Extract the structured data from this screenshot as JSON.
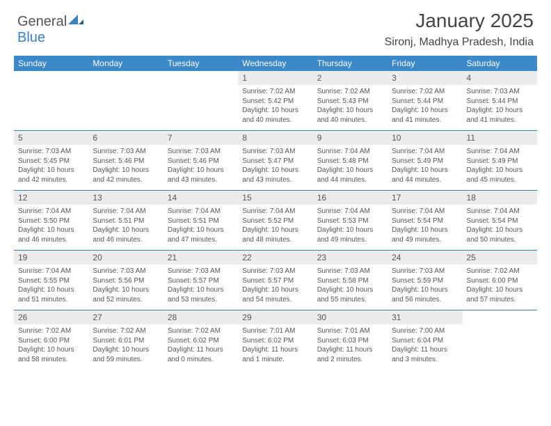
{
  "logo": {
    "text1": "General",
    "text2": "Blue"
  },
  "title": "January 2025",
  "location": "Sironj, Madhya Pradesh, India",
  "colors": {
    "header_bar": "#3b89c9",
    "header_text": "#ffffff",
    "daynum_bg": "#ececec",
    "text": "#555555",
    "rule": "#3b7fa8",
    "logo_blue": "#3b7fc4"
  },
  "typography": {
    "title_fontsize": 28,
    "location_fontsize": 16,
    "dayhead_fontsize": 12,
    "cell_fontsize": 10
  },
  "dayNames": [
    "Sunday",
    "Monday",
    "Tuesday",
    "Wednesday",
    "Thursday",
    "Friday",
    "Saturday"
  ],
  "weeks": [
    [
      null,
      null,
      null,
      {
        "n": "1",
        "sr": "7:02 AM",
        "ss": "5:42 PM",
        "dl": "10 hours and 40 minutes."
      },
      {
        "n": "2",
        "sr": "7:02 AM",
        "ss": "5:43 PM",
        "dl": "10 hours and 40 minutes."
      },
      {
        "n": "3",
        "sr": "7:02 AM",
        "ss": "5:44 PM",
        "dl": "10 hours and 41 minutes."
      },
      {
        "n": "4",
        "sr": "7:03 AM",
        "ss": "5:44 PM",
        "dl": "10 hours and 41 minutes."
      }
    ],
    [
      {
        "n": "5",
        "sr": "7:03 AM",
        "ss": "5:45 PM",
        "dl": "10 hours and 42 minutes."
      },
      {
        "n": "6",
        "sr": "7:03 AM",
        "ss": "5:46 PM",
        "dl": "10 hours and 42 minutes."
      },
      {
        "n": "7",
        "sr": "7:03 AM",
        "ss": "5:46 PM",
        "dl": "10 hours and 43 minutes."
      },
      {
        "n": "8",
        "sr": "7:03 AM",
        "ss": "5:47 PM",
        "dl": "10 hours and 43 minutes."
      },
      {
        "n": "9",
        "sr": "7:04 AM",
        "ss": "5:48 PM",
        "dl": "10 hours and 44 minutes."
      },
      {
        "n": "10",
        "sr": "7:04 AM",
        "ss": "5:49 PM",
        "dl": "10 hours and 44 minutes."
      },
      {
        "n": "11",
        "sr": "7:04 AM",
        "ss": "5:49 PM",
        "dl": "10 hours and 45 minutes."
      }
    ],
    [
      {
        "n": "12",
        "sr": "7:04 AM",
        "ss": "5:50 PM",
        "dl": "10 hours and 46 minutes."
      },
      {
        "n": "13",
        "sr": "7:04 AM",
        "ss": "5:51 PM",
        "dl": "10 hours and 46 minutes."
      },
      {
        "n": "14",
        "sr": "7:04 AM",
        "ss": "5:51 PM",
        "dl": "10 hours and 47 minutes."
      },
      {
        "n": "15",
        "sr": "7:04 AM",
        "ss": "5:52 PM",
        "dl": "10 hours and 48 minutes."
      },
      {
        "n": "16",
        "sr": "7:04 AM",
        "ss": "5:53 PM",
        "dl": "10 hours and 49 minutes."
      },
      {
        "n": "17",
        "sr": "7:04 AM",
        "ss": "5:54 PM",
        "dl": "10 hours and 49 minutes."
      },
      {
        "n": "18",
        "sr": "7:04 AM",
        "ss": "5:54 PM",
        "dl": "10 hours and 50 minutes."
      }
    ],
    [
      {
        "n": "19",
        "sr": "7:04 AM",
        "ss": "5:55 PM",
        "dl": "10 hours and 51 minutes."
      },
      {
        "n": "20",
        "sr": "7:03 AM",
        "ss": "5:56 PM",
        "dl": "10 hours and 52 minutes."
      },
      {
        "n": "21",
        "sr": "7:03 AM",
        "ss": "5:57 PM",
        "dl": "10 hours and 53 minutes."
      },
      {
        "n": "22",
        "sr": "7:03 AM",
        "ss": "5:57 PM",
        "dl": "10 hours and 54 minutes."
      },
      {
        "n": "23",
        "sr": "7:03 AM",
        "ss": "5:58 PM",
        "dl": "10 hours and 55 minutes."
      },
      {
        "n": "24",
        "sr": "7:03 AM",
        "ss": "5:59 PM",
        "dl": "10 hours and 56 minutes."
      },
      {
        "n": "25",
        "sr": "7:02 AM",
        "ss": "6:00 PM",
        "dl": "10 hours and 57 minutes."
      }
    ],
    [
      {
        "n": "26",
        "sr": "7:02 AM",
        "ss": "6:00 PM",
        "dl": "10 hours and 58 minutes."
      },
      {
        "n": "27",
        "sr": "7:02 AM",
        "ss": "6:01 PM",
        "dl": "10 hours and 59 minutes."
      },
      {
        "n": "28",
        "sr": "7:02 AM",
        "ss": "6:02 PM",
        "dl": "11 hours and 0 minutes."
      },
      {
        "n": "29",
        "sr": "7:01 AM",
        "ss": "6:02 PM",
        "dl": "11 hours and 1 minute."
      },
      {
        "n": "30",
        "sr": "7:01 AM",
        "ss": "6:03 PM",
        "dl": "11 hours and 2 minutes."
      },
      {
        "n": "31",
        "sr": "7:00 AM",
        "ss": "6:04 PM",
        "dl": "11 hours and 3 minutes."
      },
      null
    ]
  ],
  "labels": {
    "sunrise": "Sunrise: ",
    "sunset": "Sunset: ",
    "daylight": "Daylight: "
  }
}
